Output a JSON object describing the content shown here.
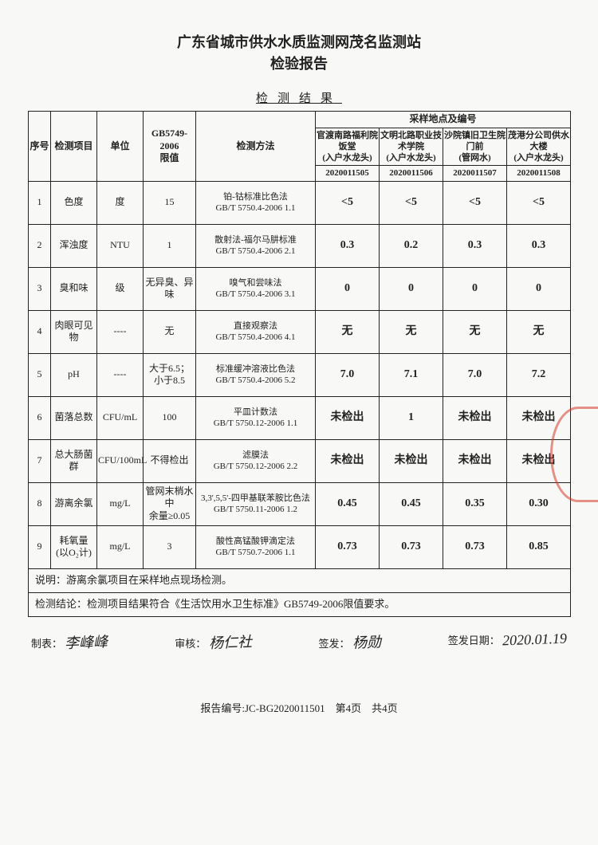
{
  "header": {
    "line1": "广东省城市供水水质监测网茂名监测站",
    "line2": "检验报告"
  },
  "subtitle": "检测结果",
  "table": {
    "head": {
      "idx": "序号",
      "item": "检测项目",
      "unit": "单位",
      "limit": "GB5749-2006\n限值",
      "method": "检测方法",
      "loc_group": "采样地点及编号",
      "locs": [
        {
          "name": "官渡南路福利院饭堂",
          "sub": "(入户水龙头)",
          "code": "2020011505"
        },
        {
          "name": "文明北路职业技术学院",
          "sub": "(入户水龙头)",
          "code": "2020011506"
        },
        {
          "name": "沙院镇旧卫生院门前",
          "sub": "(管网水)",
          "code": "2020011507"
        },
        {
          "name": "茂港分公司供水大楼",
          "sub": "(入户水龙头)",
          "code": "2020011508"
        }
      ]
    },
    "rows": [
      {
        "n": "1",
        "item": "色度",
        "unit": "度",
        "limit": "15",
        "method": "铂-钴标准比色法\nGB/T 5750.4-2006 1.1",
        "v": [
          "<5",
          "<5",
          "<5",
          "<5"
        ]
      },
      {
        "n": "2",
        "item": "浑浊度",
        "unit": "NTU",
        "limit": "1",
        "method": "散射法-福尔马肼标准\nGB/T 5750.4-2006 2.1",
        "v": [
          "0.3",
          "0.2",
          "0.3",
          "0.3"
        ]
      },
      {
        "n": "3",
        "item": "臭和味",
        "unit": "级",
        "limit": "无异臭、异味",
        "method": "嗅气和尝味法\nGB/T 5750.4-2006 3.1",
        "v": [
          "0",
          "0",
          "0",
          "0"
        ]
      },
      {
        "n": "4",
        "item": "肉眼可见物",
        "unit": "----",
        "limit": "无",
        "method": "直接观察法\nGB/T 5750.4-2006 4.1",
        "v": [
          "无",
          "无",
          "无",
          "无"
        ]
      },
      {
        "n": "5",
        "item": "pH",
        "unit": "----",
        "limit": "大于6.5；\n小于8.5",
        "method": "标准缓冲溶液比色法\nGB/T 5750.4-2006 5.2",
        "v": [
          "7.0",
          "7.1",
          "7.0",
          "7.2"
        ]
      },
      {
        "n": "6",
        "item": "菌落总数",
        "unit": "CFU/mL",
        "limit": "100",
        "method": "平皿计数法\nGB/T 5750.12-2006 1.1",
        "v": [
          "未检出",
          "1",
          "未检出",
          "未检出"
        ]
      },
      {
        "n": "7",
        "item": "总大肠菌群",
        "unit": "CFU/100mL",
        "limit": "不得检出",
        "method": "滤膜法\nGB/T 5750.12-2006 2.2",
        "v": [
          "未检出",
          "未检出",
          "未检出",
          "未检出"
        ]
      },
      {
        "n": "8",
        "item": "游离余氯",
        "unit": "mg/L",
        "limit": "管网末梢水中\n余量≥0.05",
        "method": "3,3',5,5'-四甲基联苯胺比色法\nGB/T 5750.11-2006 1.2",
        "v": [
          "0.45",
          "0.45",
          "0.35",
          "0.30"
        ]
      },
      {
        "n": "9",
        "item": "耗氧量\n(以O₂计)",
        "unit": "mg/L",
        "limit": "3",
        "method": "酸性高锰酸钾滴定法\nGB/T 5750.7-2006 1.1",
        "v": [
          "0.73",
          "0.73",
          "0.73",
          "0.85"
        ]
      }
    ],
    "note1": "说明：游离余氯项目在采样地点现场检测。",
    "note2": "检测结论：检测项目结果符合《生活饮用水卫生标准》GB5749-2006限值要求。"
  },
  "signatures": {
    "maker_label": "制表：",
    "maker_sig": "李峰峰",
    "reviewer_label": "审核：",
    "reviewer_sig": "杨仁社",
    "issuer_label": "签发：",
    "issuer_sig": "杨勋",
    "date_label": "签发日期：",
    "date_val": "2020.01.19"
  },
  "footer": {
    "text": "报告编号:JC-BG2020011501　第4页　共4页"
  }
}
